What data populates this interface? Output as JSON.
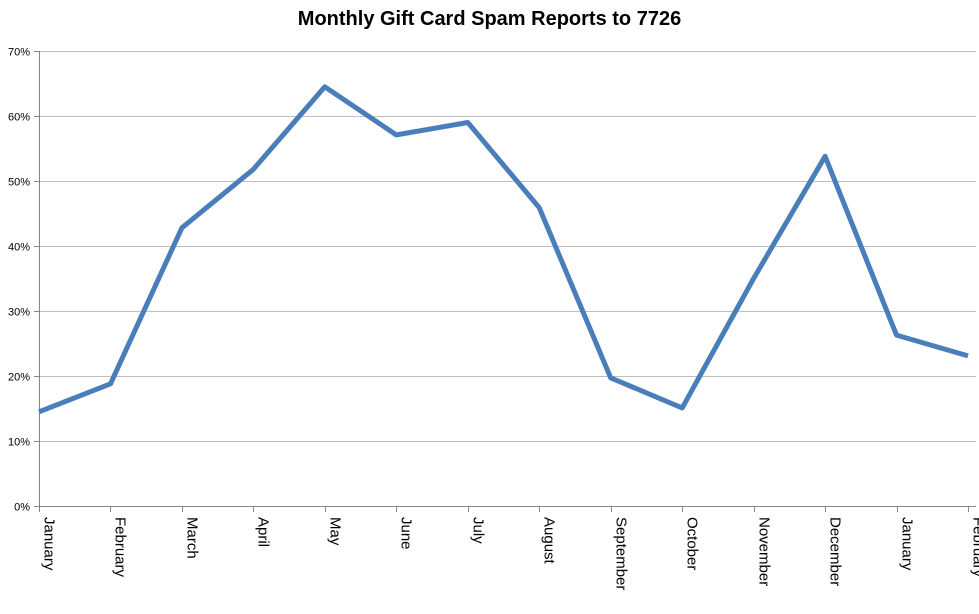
{
  "chart_data": {
    "type": "line",
    "title": "Monthly Gift Card Spam Reports to 7726",
    "xlabel": "",
    "ylabel": "",
    "categories": [
      "January",
      "February",
      "March",
      "April",
      "May",
      "June",
      "July",
      "August",
      "September",
      "October",
      "November",
      "December",
      "January",
      "February"
    ],
    "series": [
      {
        "values": [
          14.5,
          18.8,
          42.8,
          51.8,
          64.5,
          57.1,
          59.0,
          45.9,
          19.7,
          15.1,
          35.0,
          53.8,
          26.3,
          23.1
        ]
      }
    ],
    "ylim": [
      0,
      70
    ],
    "y_ticks": [
      "0%",
      "10%",
      "20%",
      "30%",
      "40%",
      "50%",
      "60%",
      "70%"
    ],
    "y_format": "percent",
    "grid": "horizontal",
    "legend": "none",
    "line_color": "#4A7EBB",
    "gridline_color": "#BFBFBF",
    "axis_color": "#868686"
  }
}
